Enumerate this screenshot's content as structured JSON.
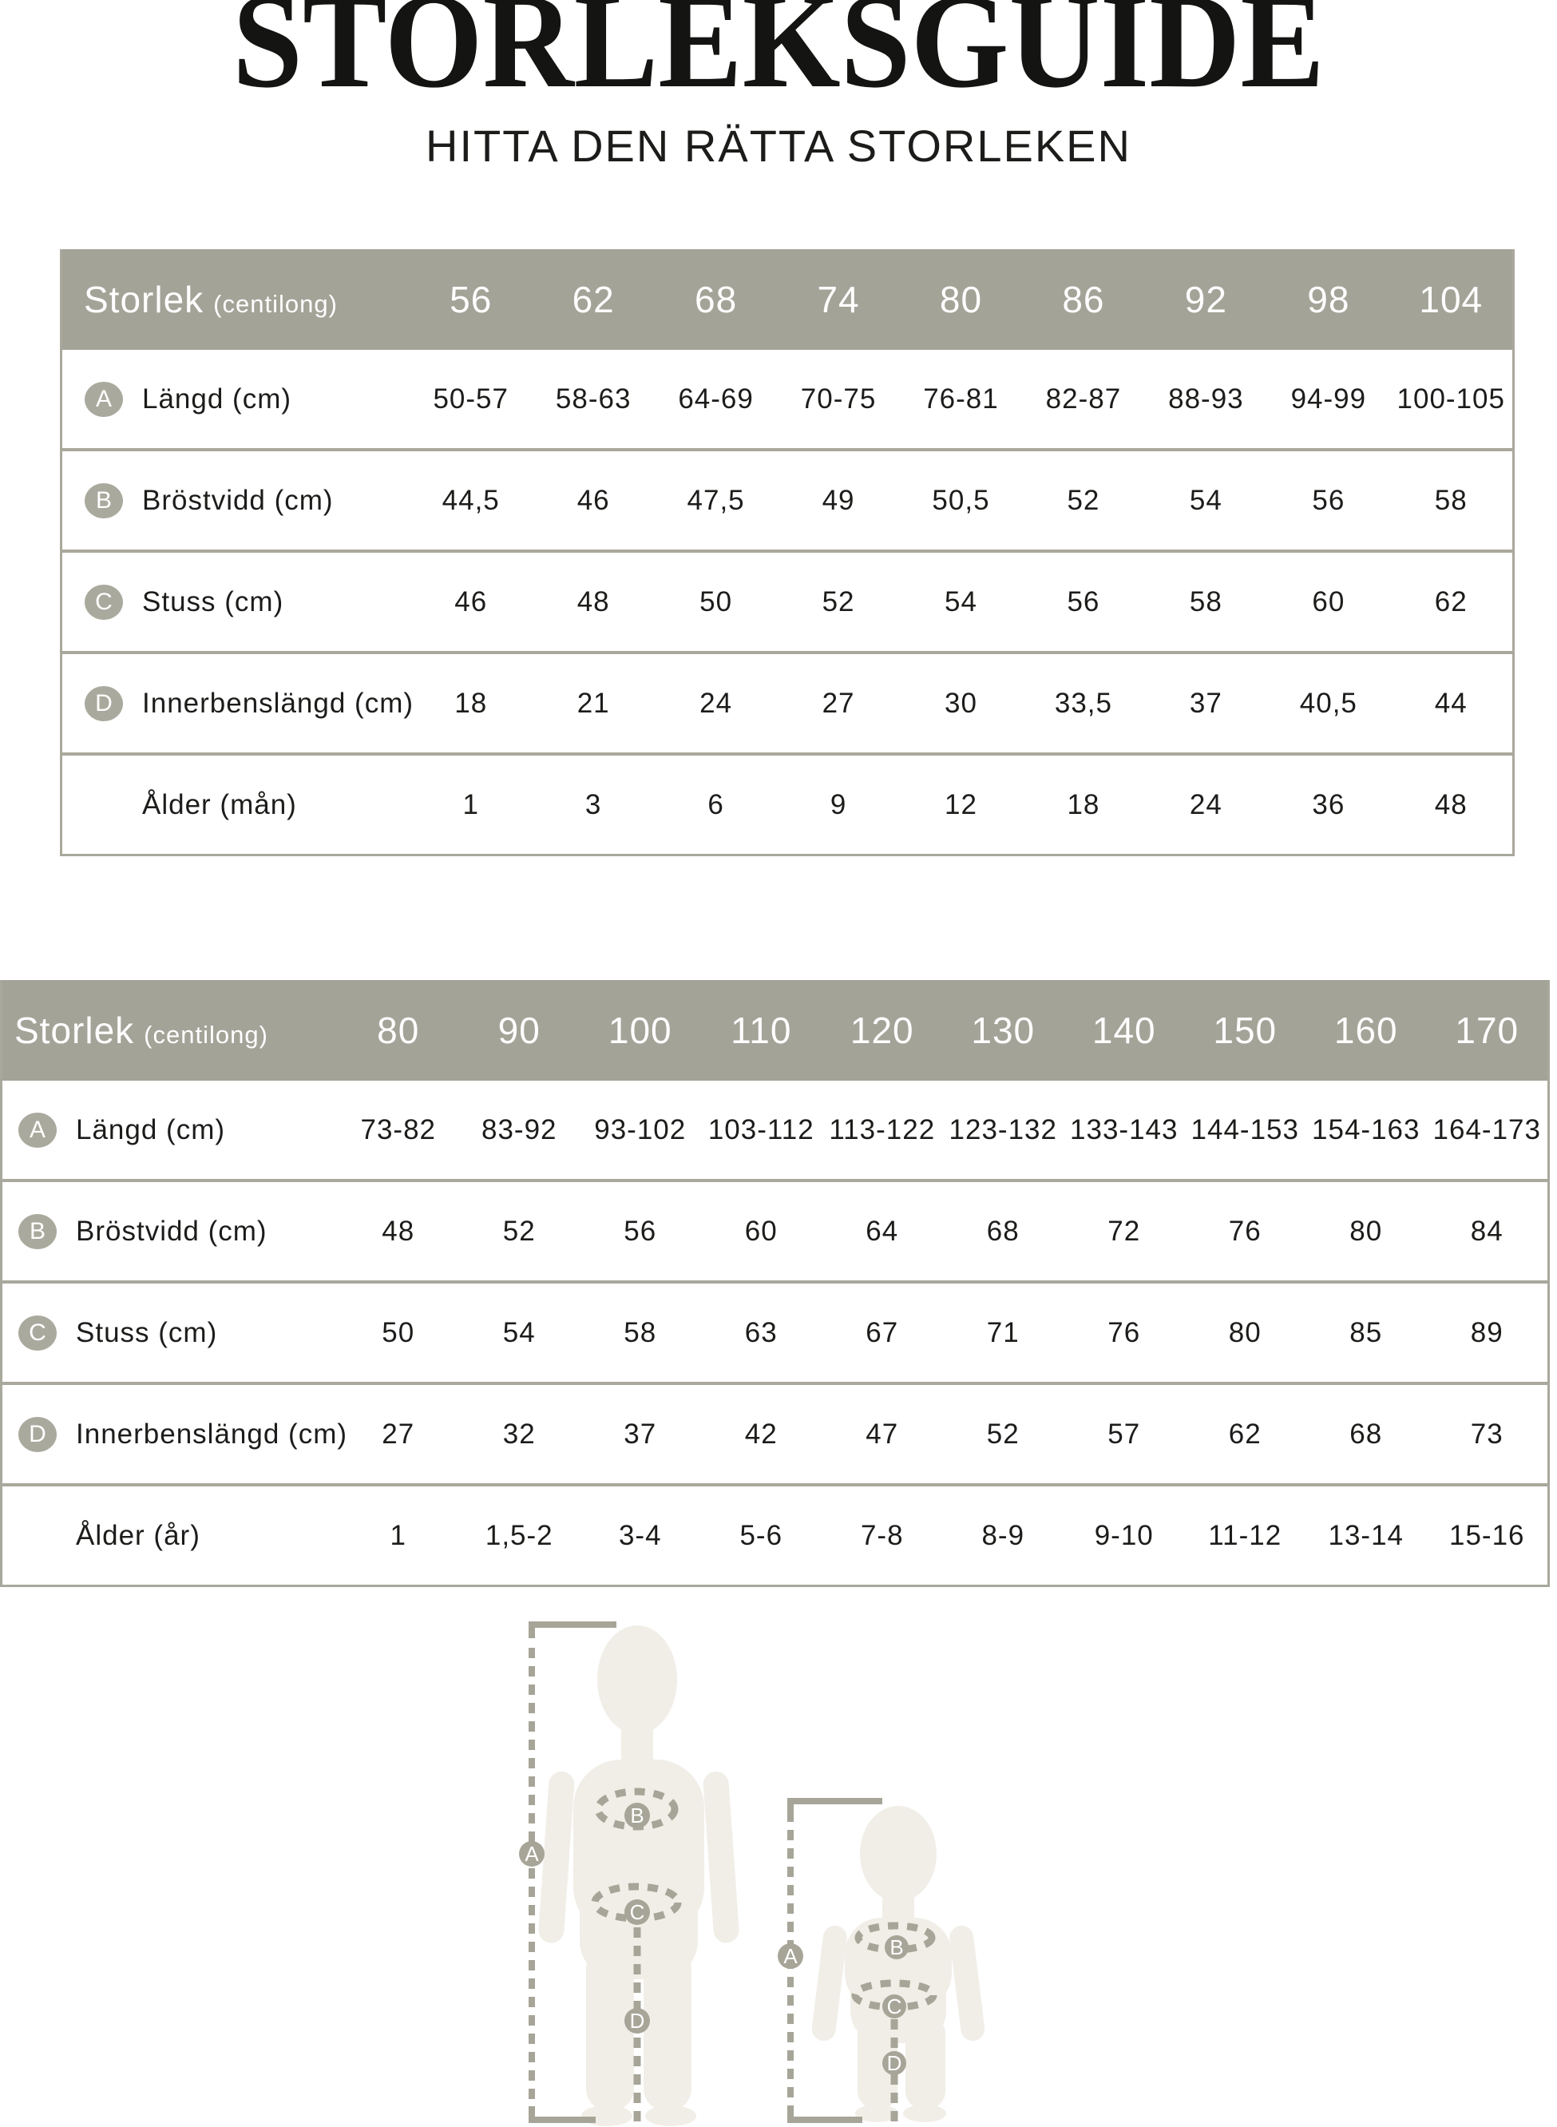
{
  "title": "STORLEKSGUIDE",
  "subtitle": "HITTA DEN RÄTTA STORLEKEN",
  "colors": {
    "accent_gray_green": "#a4a398",
    "border": "#a9a89c",
    "badge": "#aaa99d",
    "silhouette_fill": "#f0eee7",
    "text": "#1c1c1a",
    "header_text": "#ffffff"
  },
  "tables": [
    {
      "header_label": "Storlek",
      "header_note": "(centilong)",
      "sizes": [
        "56",
        "62",
        "68",
        "74",
        "80",
        "86",
        "92",
        "98",
        "104"
      ],
      "rows": [
        {
          "badge": "A",
          "label": "Längd (cm)",
          "values": [
            "50-57",
            "58-63",
            "64-69",
            "70-75",
            "76-81",
            "82-87",
            "88-93",
            "94-99",
            "100-105"
          ]
        },
        {
          "badge": "B",
          "label": "Bröstvidd (cm)",
          "values": [
            "44,5",
            "46",
            "47,5",
            "49",
            "50,5",
            "52",
            "54",
            "56",
            "58"
          ]
        },
        {
          "badge": "C",
          "label": "Stuss (cm)",
          "values": [
            "46",
            "48",
            "50",
            "52",
            "54",
            "56",
            "58",
            "60",
            "62"
          ]
        },
        {
          "badge": "D",
          "label": "Innerbenslängd (cm)",
          "values": [
            "18",
            "21",
            "24",
            "27",
            "30",
            "33,5",
            "37",
            "40,5",
            "44"
          ]
        },
        {
          "badge": "",
          "label": "Ålder (mån)",
          "values": [
            "1",
            "3",
            "6",
            "9",
            "12",
            "18",
            "24",
            "36",
            "48"
          ]
        }
      ]
    },
    {
      "header_label": "Storlek",
      "header_note": "(centilong)",
      "sizes": [
        "80",
        "90",
        "100",
        "110",
        "120",
        "130",
        "140",
        "150",
        "160",
        "170"
      ],
      "rows": [
        {
          "badge": "A",
          "label": "Längd (cm)",
          "values": [
            "73-82",
            "83-92",
            "93-102",
            "103-112",
            "113-122",
            "123-132",
            "133-143",
            "144-153",
            "154-163",
            "164-173"
          ]
        },
        {
          "badge": "B",
          "label": "Bröstvidd (cm)",
          "values": [
            "48",
            "52",
            "56",
            "60",
            "64",
            "68",
            "72",
            "76",
            "80",
            "84"
          ]
        },
        {
          "badge": "C",
          "label": "Stuss (cm)",
          "values": [
            "50",
            "54",
            "58",
            "63",
            "67",
            "71",
            "76",
            "80",
            "85",
            "89"
          ]
        },
        {
          "badge": "D",
          "label": "Innerbenslängd (cm)",
          "values": [
            "27",
            "32",
            "37",
            "42",
            "47",
            "52",
            "57",
            "62",
            "68",
            "73"
          ]
        },
        {
          "badge": "",
          "label": "Ålder (år)",
          "values": [
            "1",
            "1,5-2",
            "3-4",
            "5-6",
            "7-8",
            "8-9",
            "9-10",
            "11-12",
            "13-14",
            "15-16"
          ]
        }
      ]
    }
  ],
  "diagram": {
    "child_badges": {
      "a": "A",
      "b": "B",
      "c": "C",
      "d": "D"
    },
    "baby_badges": {
      "a": "A",
      "b": "B",
      "c": "C",
      "d": "D"
    }
  }
}
